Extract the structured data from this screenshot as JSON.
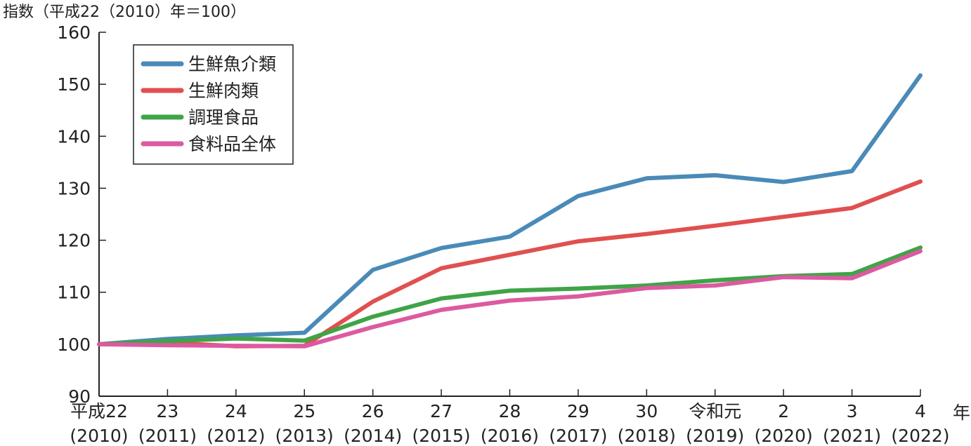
{
  "chart_data": {
    "type": "line",
    "ylabel": "指数（平成22（2010）年＝100）",
    "xunit": "年",
    "ylim": [
      90,
      160
    ],
    "yticks": [
      90,
      100,
      110,
      120,
      130,
      140,
      150,
      160
    ],
    "categories": [
      {
        "era": "平成22",
        "year": "(2010)"
      },
      {
        "era": "23",
        "year": "(2011)"
      },
      {
        "era": "24",
        "year": "(2012)"
      },
      {
        "era": "25",
        "year": "(2013)"
      },
      {
        "era": "26",
        "year": "(2014)"
      },
      {
        "era": "27",
        "year": "(2015)"
      },
      {
        "era": "28",
        "year": "(2016)"
      },
      {
        "era": "29",
        "year": "(2017)"
      },
      {
        "era": "30",
        "year": "(2018)"
      },
      {
        "era": "令和元",
        "year": "(2019)"
      },
      {
        "era": "2",
        "year": "(2020)"
      },
      {
        "era": "3",
        "year": "(2021)"
      },
      {
        "era": "4",
        "year": "(2022)"
      }
    ],
    "series": [
      {
        "name": "生鮮魚介類",
        "color": "#4a8ab8",
        "values": [
          100,
          101.0,
          101.7,
          102.2,
          114.3,
          118.5,
          120.7,
          128.5,
          131.9,
          132.5,
          131.2,
          133.3,
          151.7
        ]
      },
      {
        "name": "生鮮肉類",
        "color": "#e0504f",
        "values": [
          100,
          100.3,
          99.6,
          99.7,
          108.2,
          114.6,
          117.2,
          119.8,
          121.2,
          122.8,
          124.5,
          126.2,
          131.3
        ]
      },
      {
        "name": "調理食品",
        "color": "#3fa447",
        "values": [
          100,
          100.6,
          101.1,
          100.7,
          105.3,
          108.8,
          110.3,
          110.7,
          111.3,
          112.3,
          113.1,
          113.5,
          118.6
        ]
      },
      {
        "name": "食料品全体",
        "color": "#dc5aa0",
        "values": [
          100,
          99.8,
          99.7,
          99.6,
          103.3,
          106.6,
          108.4,
          109.2,
          110.8,
          111.3,
          112.9,
          112.7,
          117.9
        ]
      }
    ],
    "grid": false,
    "legend_position": "top-left"
  }
}
